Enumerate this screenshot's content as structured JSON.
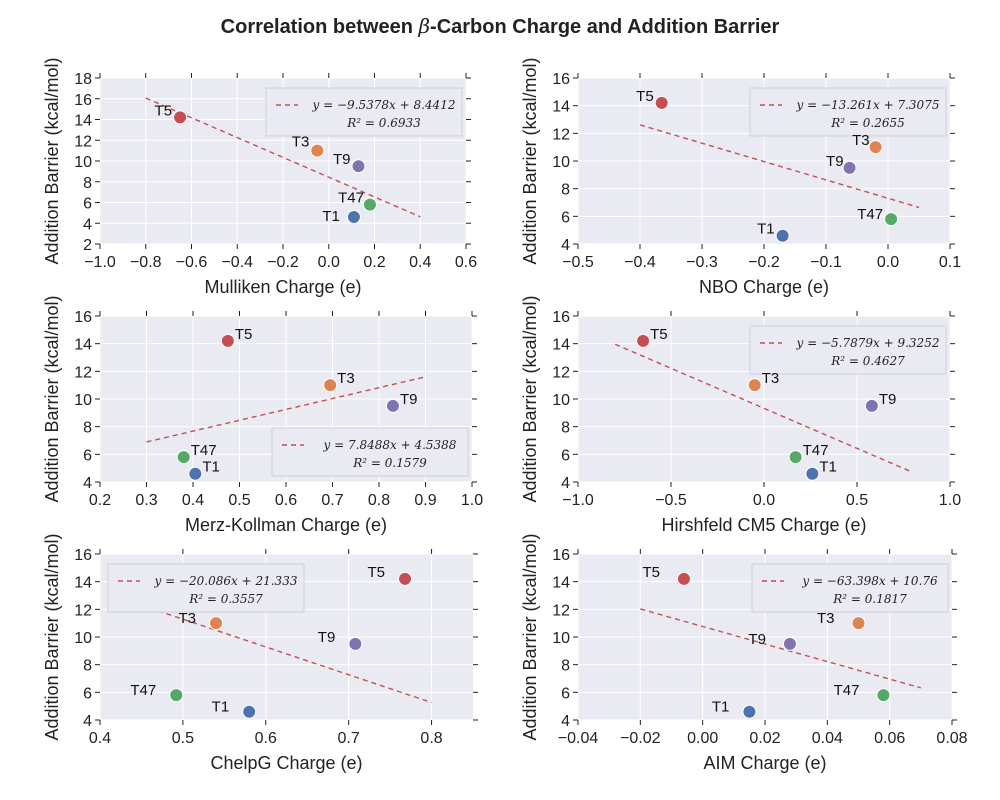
{
  "title": {
    "prefix": "Correlation between ",
    "symbol": "β",
    "suffix": "-Carbon Charge and Addition Barrier"
  },
  "colors": {
    "plot_bg": "#eaeaf2",
    "grid": "#ffffff",
    "fit": "#c44e52",
    "T1": "#4c72b0",
    "T3": "#dd8452",
    "T5": "#c44e52",
    "T9": "#8172b2",
    "T47": "#55a868"
  },
  "chart_data": [
    {
      "type": "scatter",
      "xlabel": "Mulliken Charge (e)",
      "ylabel": "Addition Barrier (kcal/mol)",
      "xlim": [
        -1.0,
        0.6
      ],
      "ylim": [
        2,
        18
      ],
      "xticks": [
        -1.0,
        -0.8,
        -0.6,
        -0.4,
        -0.2,
        0.0,
        0.2,
        0.4,
        0.6
      ],
      "xtick_labels": [
        "−1.0",
        "−0.8",
        "−0.6",
        "−0.4",
        "−0.2",
        "0.0",
        "0.2",
        "0.4",
        "0.6"
      ],
      "yticks": [
        2,
        4,
        6,
        8,
        10,
        12,
        14,
        16,
        18
      ],
      "ytick_labels": [
        "2",
        "4",
        "6",
        "8",
        "10",
        "12",
        "14",
        "16",
        "18"
      ],
      "points": [
        {
          "label": "T1",
          "x": 0.11,
          "y": 4.6
        },
        {
          "label": "T3",
          "x": -0.05,
          "y": 11.0
        },
        {
          "label": "T5",
          "x": -0.65,
          "y": 14.2
        },
        {
          "label": "T9",
          "x": 0.13,
          "y": 9.5
        },
        {
          "label": "T47",
          "x": 0.18,
          "y": 5.8
        }
      ],
      "fit": {
        "slope": -9.5378,
        "intercept": 8.4412,
        "x_range": [
          -0.8,
          0.4
        ]
      },
      "legend": {
        "equation": "y = −9.5378x + 8.4412",
        "r2": "R² = 0.6933",
        "position": "upper-right"
      }
    },
    {
      "type": "scatter",
      "xlabel": "NBO Charge (e)",
      "ylabel": "Addition Barrier (kcal/mol)",
      "xlim": [
        -0.5,
        0.1
      ],
      "ylim": [
        4,
        16
      ],
      "xticks": [
        -0.5,
        -0.4,
        -0.3,
        -0.2,
        -0.1,
        0.0,
        0.1
      ],
      "xtick_labels": [
        "−0.5",
        "−0.4",
        "−0.3",
        "−0.2",
        "−0.1",
        "0.0",
        "0.1"
      ],
      "yticks": [
        4,
        6,
        8,
        10,
        12,
        14,
        16
      ],
      "ytick_labels": [
        "4",
        "6",
        "8",
        "10",
        "12",
        "14",
        "16"
      ],
      "points": [
        {
          "label": "T1",
          "x": -0.17,
          "y": 4.6
        },
        {
          "label": "T3",
          "x": -0.02,
          "y": 11.0
        },
        {
          "label": "T5",
          "x": -0.365,
          "y": 14.2
        },
        {
          "label": "T9",
          "x": -0.062,
          "y": 9.5
        },
        {
          "label": "T47",
          "x": 0.005,
          "y": 5.8
        }
      ],
      "fit": {
        "slope": -13.261,
        "intercept": 7.3075,
        "x_range": [
          -0.4,
          0.05
        ]
      },
      "legend": {
        "equation": "y = −13.261x + 7.3075",
        "r2": "R² = 0.2655",
        "position": "upper-right"
      }
    },
    {
      "type": "scatter",
      "xlabel": "Merz-Kollman Charge (e)",
      "ylabel": "Addition Barrier (kcal/mol)",
      "xlim": [
        0.2,
        1.0
      ],
      "ylim": [
        4,
        16
      ],
      "xticks": [
        0.2,
        0.3,
        0.4,
        0.5,
        0.6,
        0.7,
        0.8,
        0.9,
        1.0
      ],
      "xtick_labels": [
        "0.2",
        "0.3",
        "0.4",
        "0.5",
        "0.6",
        "0.7",
        "0.8",
        "0.9",
        "1.0"
      ],
      "yticks": [
        4,
        6,
        8,
        10,
        12,
        14,
        16
      ],
      "ytick_labels": [
        "4",
        "6",
        "8",
        "10",
        "12",
        "14",
        "16"
      ],
      "points": [
        {
          "label": "T1",
          "x": 0.405,
          "y": 4.6
        },
        {
          "label": "T3",
          "x": 0.695,
          "y": 11.0
        },
        {
          "label": "T5",
          "x": 0.475,
          "y": 14.2
        },
        {
          "label": "T9",
          "x": 0.83,
          "y": 9.5
        },
        {
          "label": "T47",
          "x": 0.38,
          "y": 5.8
        }
      ],
      "fit": {
        "slope": 7.8488,
        "intercept": 4.5388,
        "x_range": [
          0.3,
          0.9
        ]
      },
      "legend": {
        "equation": "y = 7.8488x + 4.5388",
        "r2": "R² = 0.1579",
        "position": "lower-right"
      }
    },
    {
      "type": "scatter",
      "xlabel": "Hirshfeld CM5 Charge (e)",
      "ylabel": "Addition Barrier (kcal/mol)",
      "xlim": [
        -1.0,
        1.0
      ],
      "ylim": [
        4,
        16
      ],
      "xticks": [
        -1.0,
        -0.5,
        0.0,
        0.5,
        1.0
      ],
      "xtick_labels": [
        "−1.0",
        "−0.5",
        "0.0",
        "0.5",
        "1.0"
      ],
      "yticks": [
        4,
        6,
        8,
        10,
        12,
        14,
        16
      ],
      "ytick_labels": [
        "4",
        "6",
        "8",
        "10",
        "12",
        "14",
        "16"
      ],
      "points": [
        {
          "label": "T1",
          "x": 0.26,
          "y": 4.6
        },
        {
          "label": "T3",
          "x": -0.05,
          "y": 11.0
        },
        {
          "label": "T5",
          "x": -0.65,
          "y": 14.2
        },
        {
          "label": "T9",
          "x": 0.58,
          "y": 9.5
        },
        {
          "label": "T47",
          "x": 0.17,
          "y": 5.8
        }
      ],
      "fit": {
        "slope": -5.7879,
        "intercept": 9.3252,
        "x_range": [
          -0.8,
          0.8
        ]
      },
      "legend": {
        "equation": "y = −5.7879x + 9.3252",
        "r2": "R² = 0.4627",
        "position": "upper-right"
      }
    },
    {
      "type": "scatter",
      "xlabel": "ChelpG Charge (e)",
      "ylabel": "Addition Barrier (kcal/mol)",
      "xlim": [
        0.4,
        0.85
      ],
      "ylim": [
        4,
        16
      ],
      "xticks": [
        0.4,
        0.5,
        0.6,
        0.7,
        0.8
      ],
      "xtick_labels": [
        "0.4",
        "0.5",
        "0.6",
        "0.7",
        "0.8"
      ],
      "yticks": [
        4,
        6,
        8,
        10,
        12,
        14,
        16
      ],
      "ytick_labels": [
        "4",
        "6",
        "8",
        "10",
        "12",
        "14",
        "16"
      ],
      "points": [
        {
          "label": "T1",
          "x": 0.58,
          "y": 4.6
        },
        {
          "label": "T3",
          "x": 0.54,
          "y": 11.0
        },
        {
          "label": "T5",
          "x": 0.768,
          "y": 14.2
        },
        {
          "label": "T9",
          "x": 0.708,
          "y": 9.5
        },
        {
          "label": "T47",
          "x": 0.492,
          "y": 5.8
        }
      ],
      "fit": {
        "slope": -20.086,
        "intercept": 21.333,
        "x_range": [
          0.47,
          0.8
        ]
      },
      "legend": {
        "equation": "y = −20.086x + 21.333",
        "r2": "R² = 0.3557",
        "position": "upper-left"
      }
    },
    {
      "type": "scatter",
      "xlabel": "AIM Charge (e)",
      "ylabel": "Addition Barrier (kcal/mol)",
      "xlim": [
        -0.04,
        0.08
      ],
      "ylim": [
        4,
        16
      ],
      "xticks": [
        -0.04,
        -0.02,
        0.0,
        0.02,
        0.04,
        0.06,
        0.08
      ],
      "xtick_labels": [
        "−0.04",
        "−0.02",
        "0.00",
        "0.02",
        "0.04",
        "0.06",
        "0.08"
      ],
      "yticks": [
        4,
        6,
        8,
        10,
        12,
        14,
        16
      ],
      "ytick_labels": [
        "4",
        "6",
        "8",
        "10",
        "12",
        "14",
        "16"
      ],
      "points": [
        {
          "label": "T1",
          "x": 0.015,
          "y": 4.6
        },
        {
          "label": "T3",
          "x": 0.05,
          "y": 11.0
        },
        {
          "label": "T5",
          "x": -0.006,
          "y": 14.2
        },
        {
          "label": "T9",
          "x": 0.028,
          "y": 9.5
        },
        {
          "label": "T47",
          "x": 0.058,
          "y": 5.8
        }
      ],
      "fit": {
        "slope": -63.398,
        "intercept": 10.76,
        "x_range": [
          -0.02,
          0.07
        ]
      },
      "legend": {
        "equation": "y = −63.398x + 10.76",
        "r2": "R² = 0.1817",
        "position": "upper-right"
      }
    }
  ]
}
